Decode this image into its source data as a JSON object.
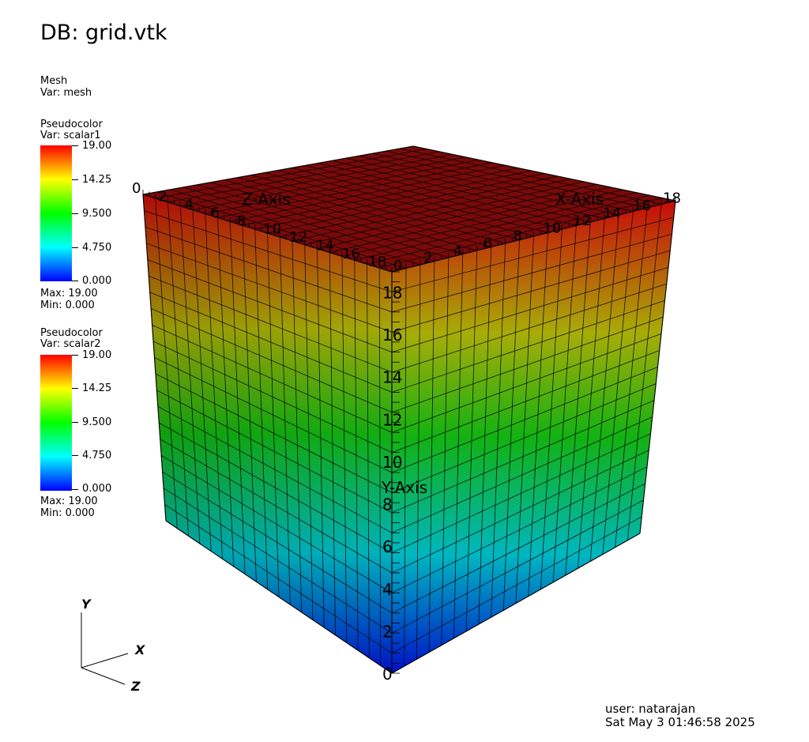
{
  "title": "DB: grid.vtk",
  "legends": {
    "mesh": {
      "plot": "Mesh",
      "var": "Var: mesh"
    },
    "pc1": {
      "plot": "Pseudocolor",
      "var": "Var: scalar1",
      "ticks": [
        "19.00",
        "14.25",
        "9.500",
        "4.750",
        "0.000"
      ],
      "max": "Max:  19.00",
      "min": "Min:  0.000"
    },
    "pc2": {
      "plot": "Pseudocolor",
      "var": "Var: scalar2",
      "ticks": [
        "19.00",
        "14.25",
        "9.500",
        "4.750",
        "0.000"
      ],
      "max": "Max:  19.00",
      "min": "Min:  0.000"
    }
  },
  "colormap": [
    "#0000ff",
    "#00ffff",
    "#00ff00",
    "#ffff00",
    "#ff0000"
  ],
  "axes": {
    "x_title": "X-Axis",
    "y_title": "Y-Axis",
    "z_title": "Z-Axis",
    "x_ticks": [
      "0",
      "2",
      "4",
      "6",
      "8",
      "10",
      "12",
      "14",
      "16",
      "18"
    ],
    "y_ticks": [
      "0",
      "2",
      "4",
      "6",
      "8",
      "10",
      "12",
      "14",
      "16",
      "18"
    ],
    "z_ticks": [
      "0",
      "2",
      "4",
      "6",
      "8",
      "10",
      "12",
      "14",
      "16",
      "18"
    ],
    "grid_cells": 20,
    "top_color": "#7a0a0a"
  },
  "triad": {
    "x": "X",
    "y": "Y",
    "z": "Z"
  },
  "footer": {
    "user": "user: natarajan",
    "date": "Sat May  3 01:46:58 2025"
  }
}
